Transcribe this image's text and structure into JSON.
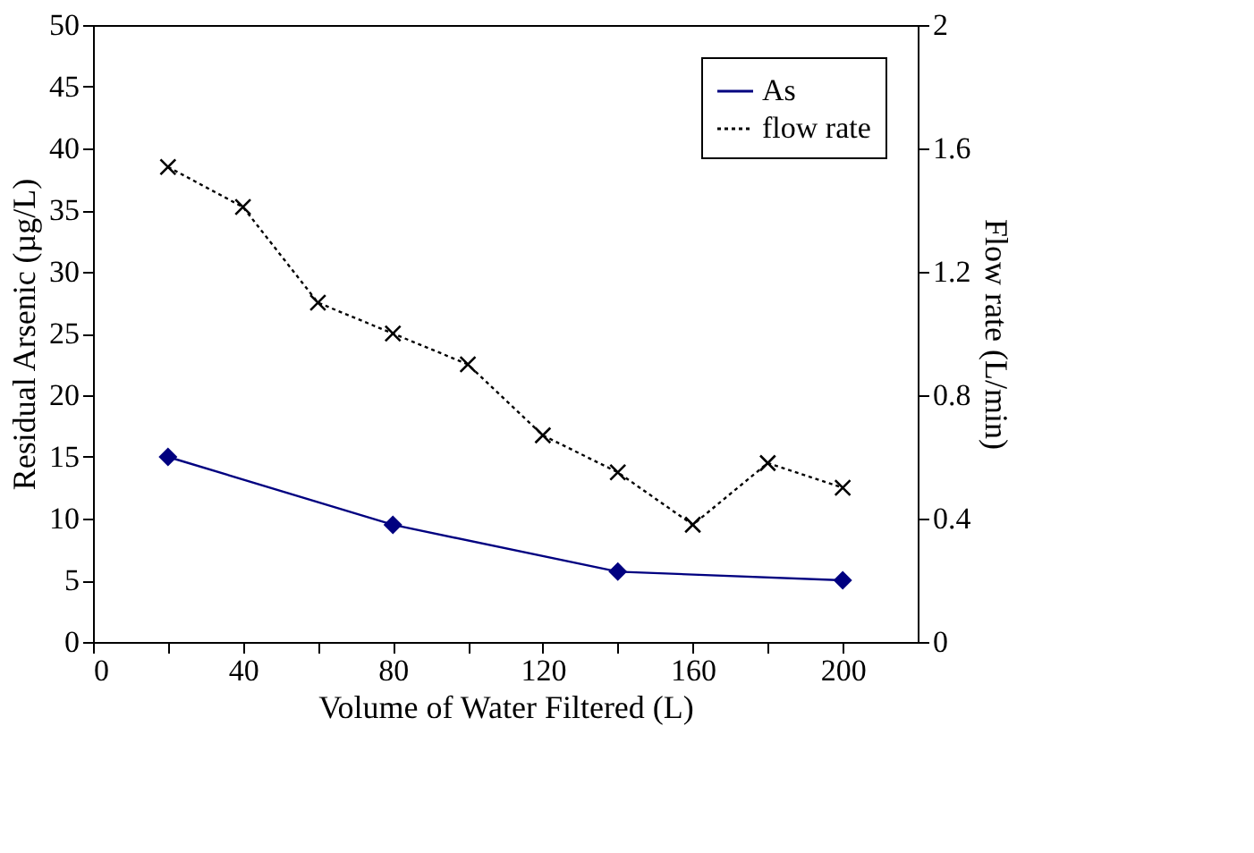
{
  "chart_data": {
    "type": "line",
    "xlabel": "Volume of Water Filtered (L)",
    "ylabel": "Residual Arsenic (µg/L)",
    "y2label": "Flow rate (L/min)",
    "xlim": [
      0,
      220
    ],
    "xticks": [
      0,
      {
        "value": 20,
        "label": null
      },
      40,
      {
        "value": 60,
        "label": null
      },
      80,
      {
        "value": 100,
        "label": null
      },
      120,
      {
        "value": 140,
        "label": null
      },
      160,
      {
        "value": 180,
        "label": null
      },
      200
    ],
    "ylim": [
      0,
      50
    ],
    "yticks": [
      0,
      5,
      10,
      15,
      20,
      25,
      30,
      35,
      40,
      45,
      50
    ],
    "y2lim": [
      0,
      2
    ],
    "y2ticks": [
      0,
      0.4,
      0.8,
      1.2,
      1.6,
      2
    ],
    "grid": false,
    "legend": "top right",
    "series": [
      {
        "name": "As",
        "color": "#000080",
        "marker": "diamond",
        "line_style": "solid",
        "x": [
          20,
          80,
          140,
          200
        ],
        "values": [
          15,
          9.5,
          5.7,
          5.0
        ]
      },
      {
        "name": "flow rate",
        "color": "#000000",
        "marker": "cross",
        "line_style": "dotted",
        "axis": "y2",
        "x": [
          20,
          40,
          60,
          80,
          100,
          120,
          140,
          160,
          180,
          200
        ],
        "values": [
          1.54,
          1.41,
          1.1,
          1.0,
          0.9,
          0.67,
          0.55,
          0.38,
          0.58,
          0.5
        ]
      }
    ]
  }
}
